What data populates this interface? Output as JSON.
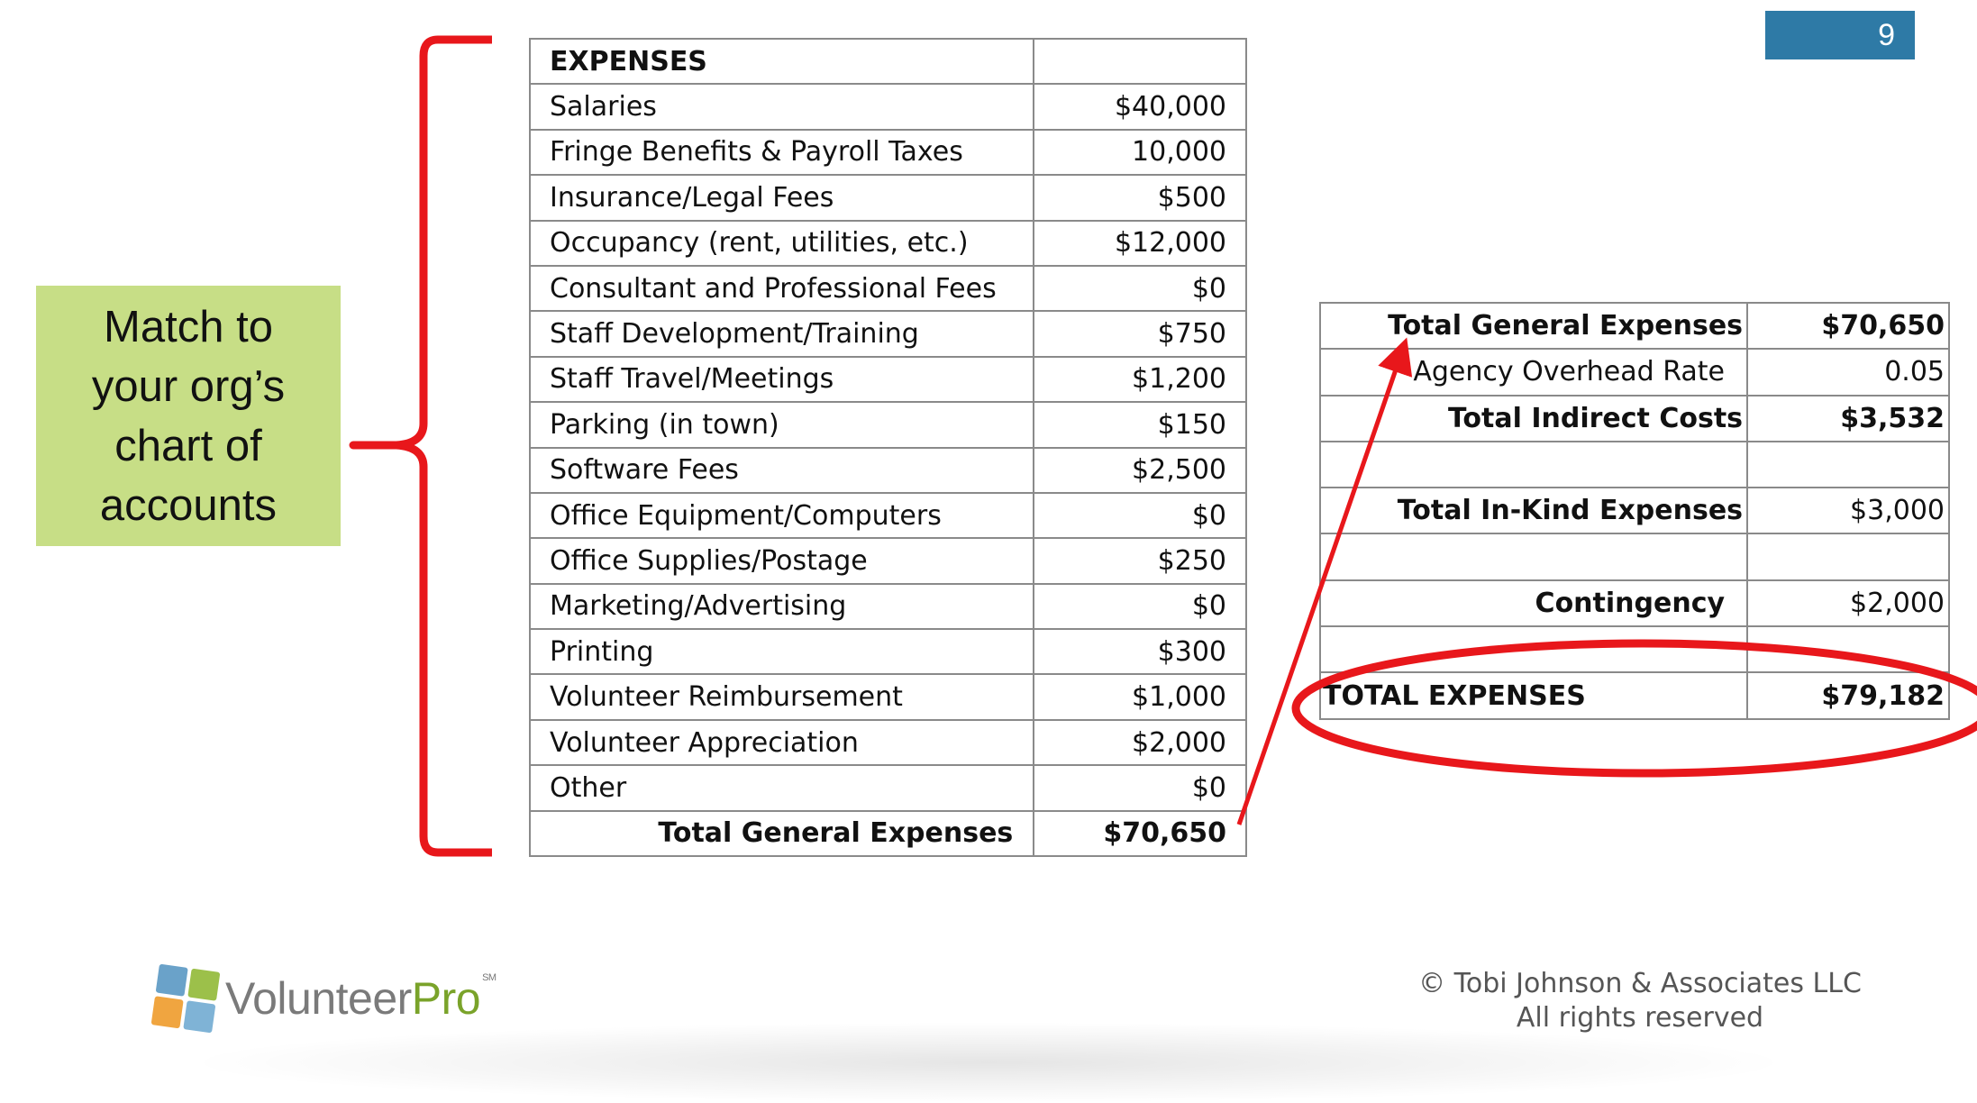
{
  "slide": {
    "page_number": "9"
  },
  "callout": {
    "text": "Match to\nyour org’s\nchart of\naccounts"
  },
  "expenses_table": {
    "header": {
      "label": "EXPENSES",
      "value": ""
    },
    "rows": [
      {
        "label": "Salaries",
        "value": "$40,000"
      },
      {
        "label": "Fringe Benefits & Payroll Taxes",
        "value": "10,000"
      },
      {
        "label": "Insurance/Legal Fees",
        "value": "$500"
      },
      {
        "label": "Occupancy (rent, utilities, etc.)",
        "value": "$12,000"
      },
      {
        "label": "Consultant and Professional Fees",
        "value": "$0"
      },
      {
        "label": "Staff Development/Training",
        "value": "$750"
      },
      {
        "label": "Staff Travel/Meetings",
        "value": "$1,200"
      },
      {
        "label": "Parking (in town)",
        "value": "$150"
      },
      {
        "label": "Software Fees",
        "value": "$2,500"
      },
      {
        "label": "Office Equipment/Computers",
        "value": "$0"
      },
      {
        "label": "Office Supplies/Postage",
        "value": "$250"
      },
      {
        "label": "Marketing/Advertising",
        "value": "$0"
      },
      {
        "label": "Printing",
        "value": "$300"
      },
      {
        "label": "Volunteer  Reimbursement",
        "value": "$1,000"
      },
      {
        "label": "Volunteer  Appreciation",
        "value": "$2,000"
      },
      {
        "label": "Other",
        "value": "$0"
      }
    ],
    "total": {
      "label": "Total General Expenses",
      "value": "$70,650"
    }
  },
  "summary_table": {
    "rows": [
      {
        "label": "Total General Expenses",
        "value": "$70,650"
      },
      {
        "label": "Agency Overhead Rate",
        "value": "0.05"
      },
      {
        "label": "Total Indirect Costs",
        "value": "$3,532"
      },
      {
        "label": "",
        "value": ""
      },
      {
        "label": "Total In-Kind Expenses",
        "value": "$3,000"
      },
      {
        "label": "",
        "value": ""
      },
      {
        "label": "Contingency",
        "value": "$2,000"
      },
      {
        "label": "",
        "value": ""
      },
      {
        "label": "TOTAL EXPENSES",
        "value": "$79,182"
      }
    ]
  },
  "annotations": {
    "color": "#e8171b"
  },
  "footer": {
    "logo_volunteer": "Volunteer",
    "logo_pro": "Pro",
    "logo_mark": "SM",
    "copyright_line1": "© Tobi Johnson & Associates LLC",
    "copyright_line2": "All rights reserved"
  }
}
